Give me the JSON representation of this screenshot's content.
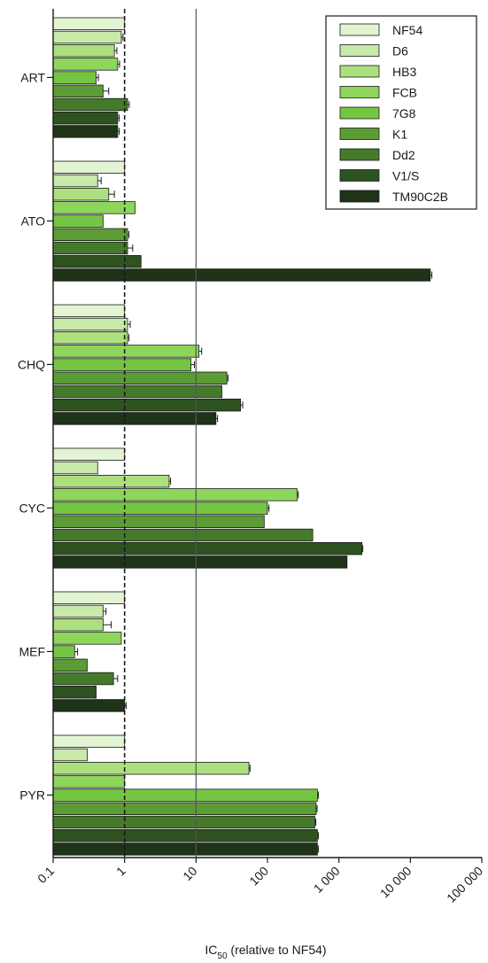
{
  "chart_data": {
    "type": "bar",
    "orientation": "horizontal",
    "xscale": "log",
    "xlim": [
      0.1,
      100000
    ],
    "xticks": [
      "0.1",
      "1",
      "10",
      "100",
      "1 000",
      "10 000",
      "100 000"
    ],
    "xlabel": {
      "main": "IC",
      "subscript": "50",
      "rest": " (relative to NF54)"
    },
    "ylabel": "",
    "reference_lines": [
      {
        "value": 1,
        "style": "dashed"
      },
      {
        "value": 10,
        "style": "solid"
      }
    ],
    "grid": false,
    "legend_position": "top-right",
    "error_bars": true,
    "categories": [
      "ART",
      "ATO",
      "CHQ",
      "CYC",
      "MEF",
      "PYR"
    ],
    "series": [
      {
        "name": "NF54",
        "color": "#e3f4d3",
        "values": [
          1,
          1,
          1,
          1,
          1,
          1
        ],
        "errors": [
          0,
          0,
          0,
          0,
          0,
          0
        ]
      },
      {
        "name": "D6",
        "color": "#c8eaaa",
        "values": [
          0.9,
          0.42,
          1.1,
          0.42,
          0.5,
          0.3
        ],
        "errors": [
          0.05,
          0.05,
          0.1,
          0,
          0.05,
          0
        ]
      },
      {
        "name": "HB3",
        "color": "#ace07f",
        "values": [
          0.72,
          0.6,
          1.1,
          4.2,
          0.5,
          55
        ],
        "errors": [
          0.06,
          0.12,
          0.05,
          0.2,
          0.15,
          2
        ]
      },
      {
        "name": "FCB",
        "color": "#8ed55c",
        "values": [
          0.8,
          1.4,
          11,
          260,
          0.9,
          1
        ],
        "errors": [
          0.05,
          0,
          1,
          10,
          0,
          0
        ]
      },
      {
        "name": "7G8",
        "color": "#74c642",
        "values": [
          0.4,
          0.5,
          8.5,
          100,
          0.2,
          500
        ],
        "errors": [
          0.03,
          0,
          1,
          5,
          0.02,
          15
        ]
      },
      {
        "name": "K1",
        "color": "#5c9c36",
        "values": [
          0.5,
          1.1,
          27,
          90,
          0.3,
          480
        ],
        "errors": [
          0.1,
          0.05,
          1,
          0,
          0,
          15
        ]
      },
      {
        "name": "Dd2",
        "color": "#457a2a",
        "values": [
          1.1,
          1.1,
          23,
          430,
          0.7,
          460
        ],
        "errors": [
          0.06,
          0.2,
          0,
          0,
          0.1,
          15
        ]
      },
      {
        "name": "V1/S",
        "color": "#2e5220",
        "values": [
          0.8,
          1.7,
          42,
          2100,
          0.4,
          500
        ],
        "errors": [
          0.04,
          0,
          3,
          60,
          0,
          15
        ]
      },
      {
        "name": "TM90C2B",
        "color": "#1e3317",
        "values": [
          0.8,
          19000,
          19,
          1300,
          1,
          500
        ],
        "errors": [
          0.04,
          1000,
          1,
          0,
          0.05,
          15
        ]
      }
    ]
  }
}
